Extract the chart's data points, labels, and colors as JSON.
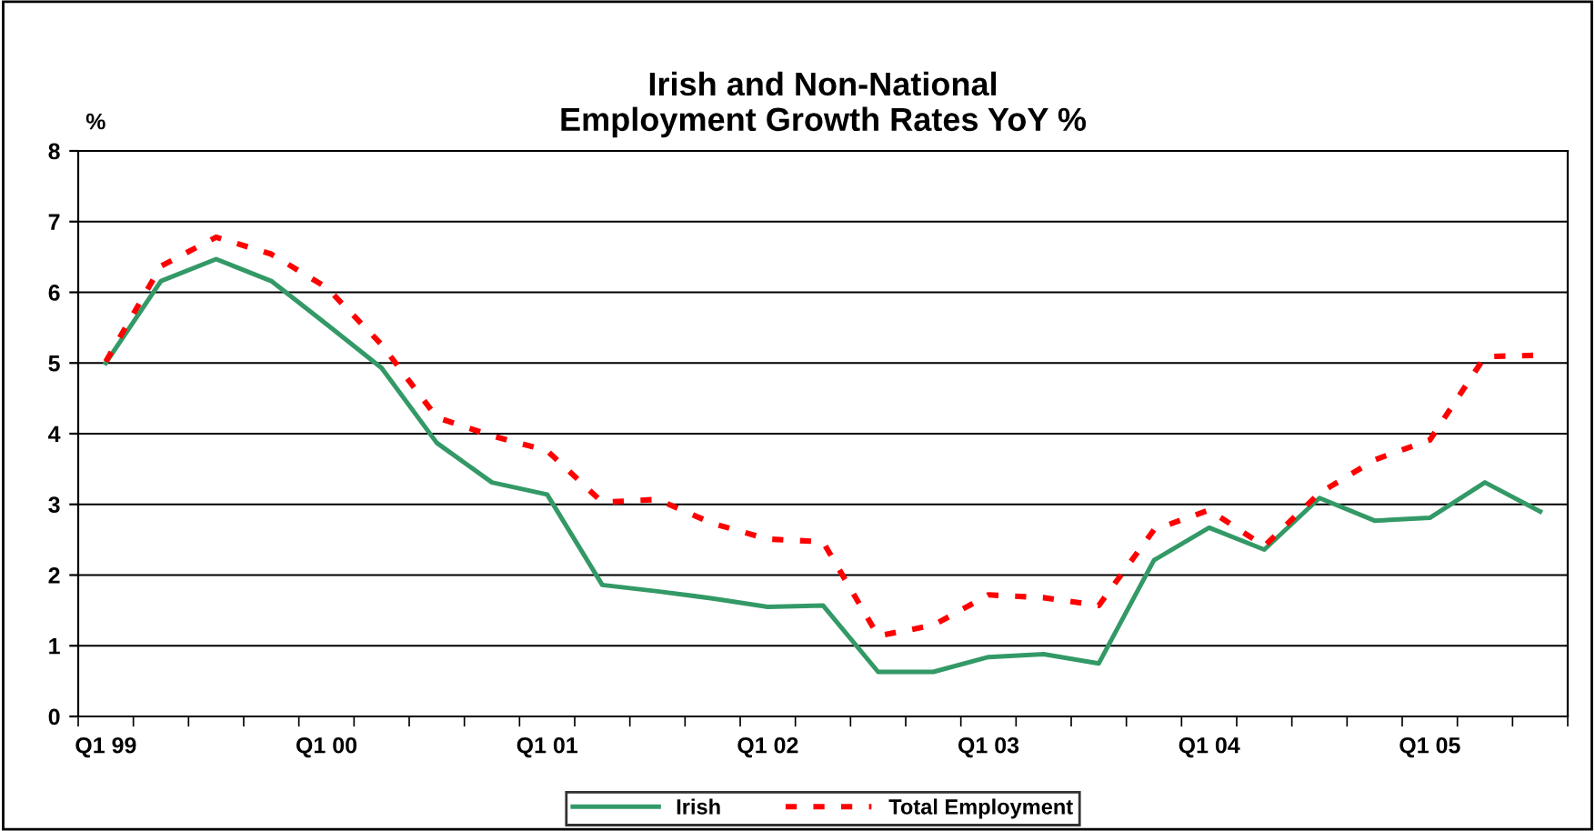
{
  "chart_data": {
    "type": "line",
    "title": "Irish and Non-National\nEmployment Growth Rates YoY %",
    "ylabel": "%",
    "categories": [
      "Q1 99",
      null,
      null,
      null,
      "Q1 00",
      null,
      null,
      null,
      "Q1 01",
      null,
      null,
      null,
      "Q1 02",
      null,
      null,
      null,
      "Q1 03",
      null,
      null,
      null,
      "Q1 04",
      null,
      null,
      null,
      "Q1 05",
      null,
      null
    ],
    "series": [
      {
        "name": "Irish",
        "color": "#339966",
        "line_style": "solid",
        "values": [
          5.0,
          6.16,
          6.47,
          6.16,
          5.55,
          4.93,
          3.87,
          3.31,
          3.14,
          1.86,
          1.77,
          1.67,
          1.55,
          1.57,
          0.63,
          0.63,
          0.84,
          0.88,
          0.75,
          2.21,
          2.67,
          2.36,
          3.09,
          2.77,
          2.81,
          3.31,
          2.9
        ]
      },
      {
        "name": "Total Employment",
        "color": "#ff0000",
        "line_style": "dashed",
        "values": [
          5.02,
          6.37,
          6.78,
          6.54,
          6.07,
          5.26,
          4.23,
          3.97,
          3.76,
          3.03,
          3.07,
          2.73,
          2.51,
          2.47,
          1.14,
          1.29,
          1.72,
          1.68,
          1.57,
          2.64,
          2.92,
          2.41,
          3.16,
          3.63,
          3.91,
          5.09,
          5.11
        ]
      }
    ],
    "ylim": [
      0,
      8
    ],
    "yticks": [
      0,
      1,
      2,
      3,
      4,
      5,
      6,
      7,
      8
    ],
    "grid": "y",
    "legend": "bottom",
    "marker": "none"
  }
}
